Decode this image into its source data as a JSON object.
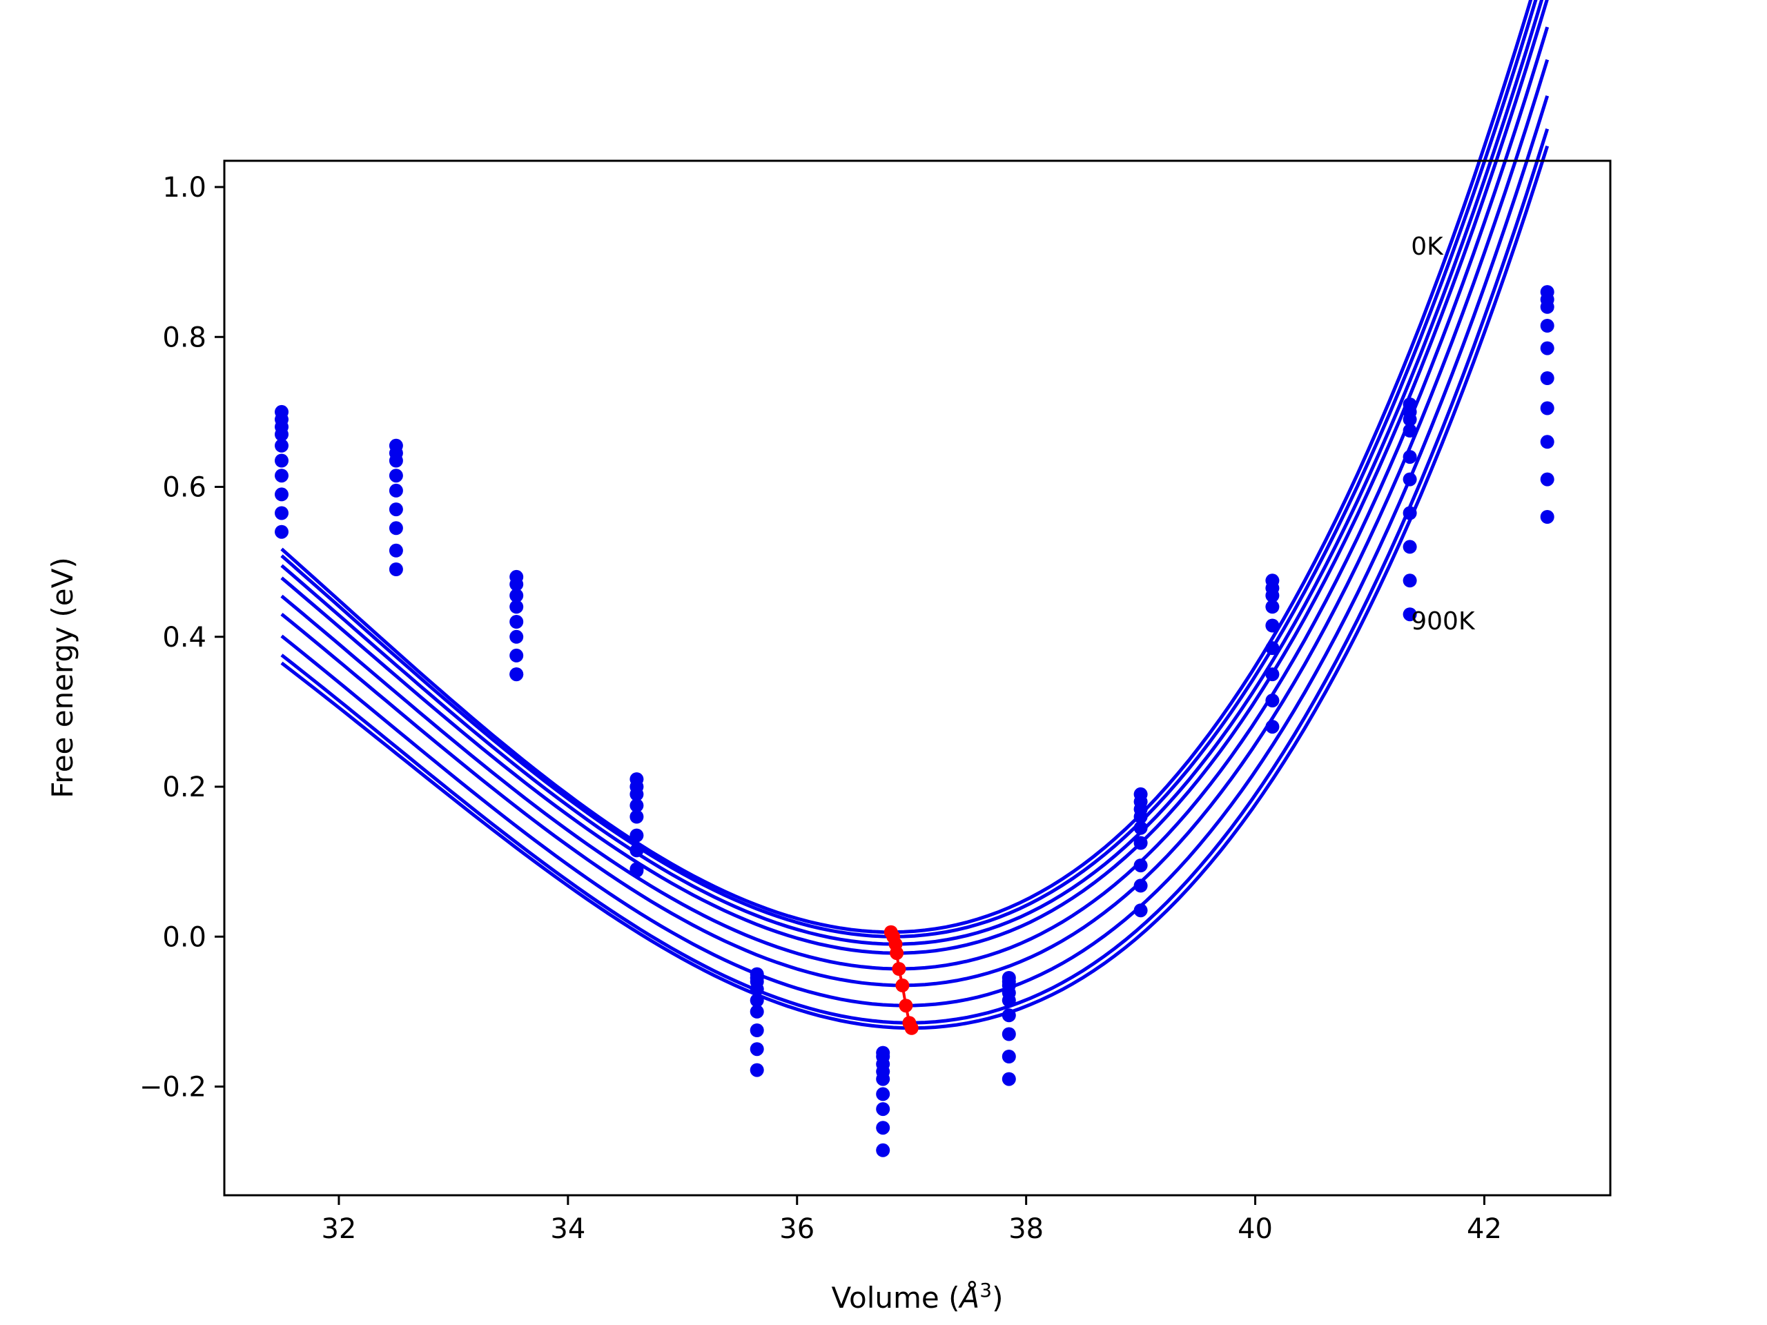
{
  "chart_data": {
    "type": "scatter",
    "title": "",
    "xlabel_main": "Volume (",
    "xlabel_unit": "Å",
    "xlabel_sup": "3",
    "xlabel_close": ")",
    "ylabel": "Free energy (eV)",
    "xlim": [
      31.0,
      43.1
    ],
    "ylim": [
      -0.345,
      1.035
    ],
    "xticks": [
      32,
      34,
      36,
      38,
      40,
      42
    ],
    "xtick_labels": [
      "32",
      "34",
      "36",
      "38",
      "40",
      "42"
    ],
    "yticks": [
      -0.2,
      0.0,
      0.2,
      0.4,
      0.6,
      0.8,
      1.0
    ],
    "ytick_labels": [
      "−0.2",
      "0.0",
      "0.2",
      "0.4",
      "0.6",
      "0.8",
      "1.0"
    ],
    "grid": false,
    "annotations": [
      {
        "text": "0K",
        "x": 41.36,
        "y": 0.91
      },
      {
        "text": "900K",
        "x": 41.36,
        "y": 0.41
      }
    ],
    "point_color": "#0000ee",
    "curve_color": "#0000ee",
    "minimum_color": "#ff0000",
    "volumes": [
      31.5,
      32.5,
      33.55,
      34.6,
      35.65,
      36.75,
      37.85,
      39.0,
      40.15,
      41.35,
      42.55
    ],
    "series": [
      {
        "name": "0K",
        "energies": [
          0.7,
          0.655,
          0.48,
          0.21,
          -0.05,
          -0.155,
          -0.055,
          0.19,
          0.475,
          0.71,
          0.86
        ],
        "fit": {
          "v0": 36.82,
          "e0": 0.006,
          "a": 0.0287,
          "b": 0.002
        },
        "minimum": [
          36.82,
          0.006
        ]
      },
      {
        "name": "",
        "energies": [
          0.69,
          0.645,
          0.47,
          0.2,
          -0.055,
          -0.16,
          -0.06,
          0.18,
          0.465,
          0.7,
          0.85
        ],
        "fit": {
          "v0": 36.84,
          "e0": 0.0,
          "a": 0.0285,
          "b": 0.002
        },
        "minimum": [
          36.84,
          0.0
        ]
      },
      {
        "name": "",
        "energies": [
          0.68,
          0.635,
          0.455,
          0.19,
          -0.06,
          -0.17,
          -0.065,
          0.17,
          0.455,
          0.69,
          0.84
        ],
        "fit": {
          "v0": 36.86,
          "e0": -0.01,
          "a": 0.0283,
          "b": 0.002
        },
        "minimum": [
          36.86,
          -0.01
        ]
      },
      {
        "name": "",
        "energies": [
          0.67,
          0.615,
          0.44,
          0.175,
          -0.07,
          -0.18,
          -0.075,
          0.16,
          0.44,
          0.675,
          0.815
        ],
        "fit": {
          "v0": 36.87,
          "e0": -0.022,
          "a": 0.0281,
          "b": 0.002
        },
        "minimum": [
          36.87,
          -0.022
        ]
      },
      {
        "name": "",
        "energies": [
          0.655,
          0.595,
          0.42,
          0.16,
          -0.085,
          -0.19,
          -0.085,
          0.145,
          0.415,
          0.64,
          0.785
        ],
        "fit": {
          "v0": 36.89,
          "e0": -0.043,
          "a": 0.0279,
          "b": 0.002
        },
        "minimum": [
          36.89,
          -0.043
        ]
      },
      {
        "name": "",
        "energies": [
          0.635,
          0.57,
          0.4,
          0.135,
          -0.1,
          -0.21,
          -0.105,
          0.125,
          0.385,
          0.61,
          0.745
        ],
        "fit": {
          "v0": 36.92,
          "e0": -0.065,
          "a": 0.0277,
          "b": 0.002
        },
        "minimum": [
          36.92,
          -0.065
        ]
      },
      {
        "name": "",
        "energies": [
          0.615,
          0.545,
          0.375,
          0.115,
          -0.125,
          -0.23,
          -0.13,
          0.095,
          0.35,
          0.565,
          0.705
        ],
        "fit": {
          "v0": 36.95,
          "e0": -0.092,
          "a": 0.0275,
          "b": 0.002
        },
        "minimum": [
          36.95,
          -0.092
        ]
      },
      {
        "name": "",
        "energies": [
          0.59,
          0.515,
          0.35,
          0.09,
          -0.15,
          -0.255,
          -0.16,
          0.068,
          0.315,
          0.52,
          0.66
        ],
        "fit": {
          "v0": 36.98,
          "e0": -0.115,
          "a": 0.0273,
          "b": 0.002
        },
        "minimum": [
          36.98,
          -0.115
        ]
      },
      {
        "name": "900K",
        "energies": [
          0.565,
          0.49,
          0.35,
          0.088,
          -0.178,
          -0.285,
          -0.19,
          0.035,
          0.28,
          0.475,
          0.61
        ],
        "fit": {
          "v0": 37.0,
          "e0": -0.122,
          "a": 0.0271,
          "b": 0.002
        },
        "minimum": [
          37.0,
          -0.122
        ]
      }
    ],
    "extra_points": [
      [
        31.5,
        0.54
      ],
      [
        42.55,
        0.56
      ],
      [
        41.35,
        0.43
      ]
    ]
  }
}
